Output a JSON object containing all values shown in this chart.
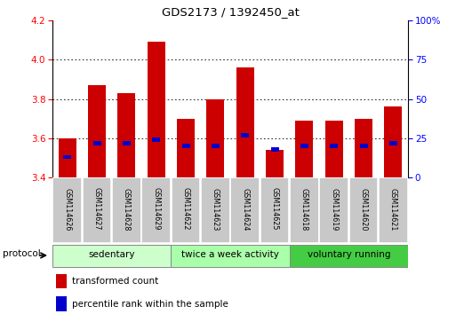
{
  "title": "GDS2173 / 1392450_at",
  "samples": [
    "GSM114626",
    "GSM114627",
    "GSM114628",
    "GSM114629",
    "GSM114622",
    "GSM114623",
    "GSM114624",
    "GSM114625",
    "GSM114618",
    "GSM114619",
    "GSM114620",
    "GSM114621"
  ],
  "transformed_count": [
    3.6,
    3.87,
    3.83,
    4.09,
    3.7,
    3.8,
    3.96,
    3.54,
    3.69,
    3.69,
    3.7,
    3.76
  ],
  "percentile_rank": [
    13,
    22,
    22,
    24,
    20,
    20,
    27,
    18,
    20,
    20,
    20,
    22
  ],
  "groups": [
    {
      "label": "sedentary",
      "start": 0,
      "end": 4,
      "color": "#ccffcc"
    },
    {
      "label": "twice a week activity",
      "start": 4,
      "end": 8,
      "color": "#aaffaa"
    },
    {
      "label": "voluntary running",
      "start": 8,
      "end": 12,
      "color": "#44cc44"
    }
  ],
  "bar_color": "#cc0000",
  "blue_color": "#0000cc",
  "ylim_left": [
    3.4,
    4.2
  ],
  "ylim_right": [
    0,
    100
  ],
  "yticks_left": [
    3.4,
    3.6,
    3.8,
    4.0,
    4.2
  ],
  "yticks_right": [
    0,
    25,
    50,
    75,
    100
  ],
  "bar_width": 0.6,
  "protocol_label": "protocol",
  "legend_items": [
    "transformed count",
    "percentile rank within the sample"
  ],
  "legend_colors": [
    "#cc0000",
    "#0000cc"
  ],
  "group_colors": [
    "#ccffcc",
    "#aaffaa",
    "#44cc44"
  ],
  "bg_color": "#ffffff",
  "label_box_color": "#c8c8c8",
  "grid_yticks": [
    3.6,
    3.8,
    4.0
  ]
}
